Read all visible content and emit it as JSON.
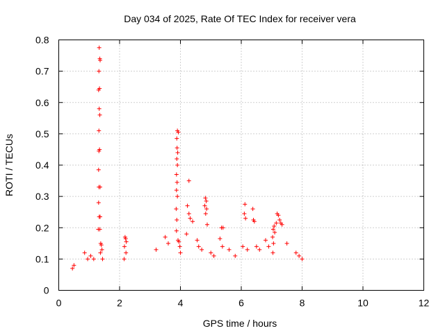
{
  "chart_data": {
    "type": "scatter",
    "title": "Day 034 of 2025, Rate Of TEC Index for receiver vera",
    "xlabel": "GPS time / hours",
    "ylabel": "ROTI / TECUs",
    "xlim": [
      0,
      12
    ],
    "ylim": [
      0,
      0.8
    ],
    "x_ticks": [
      0,
      2,
      4,
      6,
      8,
      10,
      12
    ],
    "y_ticks": [
      0,
      0.1,
      0.2,
      0.3,
      0.4,
      0.5,
      0.6,
      0.7,
      0.8
    ],
    "x_tick_labels": [
      "0",
      "2",
      "4",
      "6",
      "8",
      "10",
      "12"
    ],
    "y_tick_labels": [
      "0",
      "0.1",
      "0.2",
      "0.3",
      "0.4",
      "0.5",
      "0.6",
      "0.7",
      "0.8"
    ],
    "grid": true,
    "marker": "+",
    "color": "#ff0000",
    "series": [
      {
        "name": "ROTI",
        "points": [
          [
            1.33,
            0.775
          ],
          [
            1.35,
            0.74
          ],
          [
            1.36,
            0.735
          ],
          [
            1.32,
            0.7
          ],
          [
            1.34,
            0.645
          ],
          [
            1.31,
            0.64
          ],
          [
            1.33,
            0.58
          ],
          [
            1.35,
            0.56
          ],
          [
            1.32,
            0.51
          ],
          [
            1.34,
            0.45
          ],
          [
            1.32,
            0.445
          ],
          [
            1.31,
            0.385
          ],
          [
            1.32,
            0.33
          ],
          [
            1.36,
            0.33
          ],
          [
            1.31,
            0.28
          ],
          [
            1.33,
            0.235
          ],
          [
            1.36,
            0.235
          ],
          [
            1.3,
            0.195
          ],
          [
            1.35,
            0.195
          ],
          [
            1.38,
            0.15
          ],
          [
            1.4,
            0.145
          ],
          [
            1.42,
            0.13
          ],
          [
            1.37,
            0.12
          ],
          [
            1.44,
            0.1
          ],
          [
            3.9,
            0.51
          ],
          [
            3.93,
            0.505
          ],
          [
            3.88,
            0.485
          ],
          [
            3.89,
            0.455
          ],
          [
            3.91,
            0.44
          ],
          [
            3.88,
            0.42
          ],
          [
            3.9,
            0.4
          ],
          [
            3.87,
            0.37
          ],
          [
            3.89,
            0.345
          ],
          [
            3.87,
            0.32
          ],
          [
            3.9,
            0.3
          ],
          [
            3.86,
            0.26
          ],
          [
            3.88,
            0.225
          ],
          [
            3.87,
            0.19
          ],
          [
            3.92,
            0.16
          ],
          [
            3.95,
            0.155
          ],
          [
            3.98,
            0.14
          ],
          [
            4.0,
            0.12
          ],
          [
            4.28,
            0.35
          ],
          [
            4.23,
            0.27
          ],
          [
            4.28,
            0.245
          ],
          [
            4.32,
            0.23
          ],
          [
            4.4,
            0.22
          ],
          [
            4.2,
            0.18
          ],
          [
            4.82,
            0.295
          ],
          [
            4.85,
            0.285
          ],
          [
            4.8,
            0.27
          ],
          [
            4.86,
            0.26
          ],
          [
            4.83,
            0.245
          ],
          [
            4.88,
            0.21
          ],
          [
            6.12,
            0.275
          ],
          [
            6.1,
            0.245
          ],
          [
            6.14,
            0.23
          ],
          [
            6.38,
            0.26
          ],
          [
            6.4,
            0.225
          ],
          [
            6.43,
            0.22
          ],
          [
            7.18,
            0.245
          ],
          [
            7.22,
            0.24
          ],
          [
            7.26,
            0.225
          ],
          [
            7.3,
            0.215
          ],
          [
            7.34,
            0.21
          ],
          [
            7.15,
            0.215
          ],
          [
            7.08,
            0.205
          ],
          [
            7.05,
            0.195
          ],
          [
            7.1,
            0.185
          ],
          [
            7.03,
            0.17
          ],
          [
            7.06,
            0.15
          ],
          [
            7.04,
            0.12
          ],
          [
            2.18,
            0.17
          ],
          [
            2.2,
            0.165
          ],
          [
            2.22,
            0.155
          ],
          [
            2.16,
            0.14
          ],
          [
            2.21,
            0.12
          ],
          [
            2.15,
            0.1
          ],
          [
            5.35,
            0.2
          ],
          [
            5.4,
            0.2
          ],
          [
            5.3,
            0.165
          ],
          [
            5.38,
            0.14
          ],
          [
            6.05,
            0.14
          ],
          [
            6.2,
            0.13
          ],
          [
            6.5,
            0.14
          ],
          [
            6.6,
            0.13
          ],
          [
            6.8,
            0.16
          ],
          [
            6.9,
            0.14
          ],
          [
            7.5,
            0.15
          ],
          [
            7.8,
            0.12
          ],
          [
            7.9,
            0.11
          ],
          [
            8.0,
            0.1
          ],
          [
            3.5,
            0.17
          ],
          [
            3.6,
            0.15
          ],
          [
            3.2,
            0.13
          ],
          [
            0.85,
            0.12
          ],
          [
            0.95,
            0.1
          ],
          [
            1.05,
            0.11
          ],
          [
            1.15,
            0.1
          ],
          [
            0.5,
            0.08
          ],
          [
            0.45,
            0.07
          ],
          [
            4.55,
            0.16
          ],
          [
            4.6,
            0.14
          ],
          [
            4.7,
            0.13
          ],
          [
            5.0,
            0.12
          ],
          [
            5.1,
            0.11
          ],
          [
            5.6,
            0.13
          ],
          [
            5.8,
            0.11
          ]
        ]
      }
    ]
  }
}
